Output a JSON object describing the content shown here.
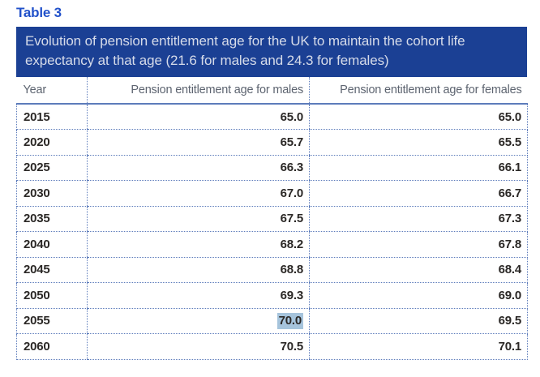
{
  "page": {
    "table_label": "Table 3",
    "banner_title": "Evolution of pension entitlement age for the UK to maintain the cohort life expectancy at that age (21.6 for males and 24.3 for females)"
  },
  "table": {
    "columns": {
      "year": "Year",
      "males": "Pension entitlement age for males",
      "females": "Pension entitlement age for females"
    },
    "rows": [
      {
        "year": "2015",
        "males": "65.0",
        "females": "65.0"
      },
      {
        "year": "2020",
        "males": "65.7",
        "females": "65.5"
      },
      {
        "year": "2025",
        "males": "66.3",
        "females": "66.1"
      },
      {
        "year": "2030",
        "males": "67.0",
        "females": "66.7"
      },
      {
        "year": "2035",
        "males": "67.5",
        "females": "67.3"
      },
      {
        "year": "2040",
        "males": "68.2",
        "females": "67.8"
      },
      {
        "year": "2045",
        "males": "68.8",
        "females": "68.4"
      },
      {
        "year": "2050",
        "males": "69.3",
        "females": "69.0"
      },
      {
        "year": "2055",
        "males": "70.0",
        "females": "69.5"
      },
      {
        "year": "2060",
        "males": "70.5",
        "females": "70.1"
      }
    ],
    "highlighted_cell": {
      "row_year": "2055",
      "column": "males",
      "value": "70.0"
    }
  },
  "colors": {
    "banner_bg": "#1b4094",
    "banner_text": "#d6dbe9",
    "table_label_text": "#2151ca",
    "header_text": "#5d6470",
    "data_text": "#2b2826",
    "border_blue": "#5d7cbb",
    "selection_highlight": "#a6c4dc"
  }
}
